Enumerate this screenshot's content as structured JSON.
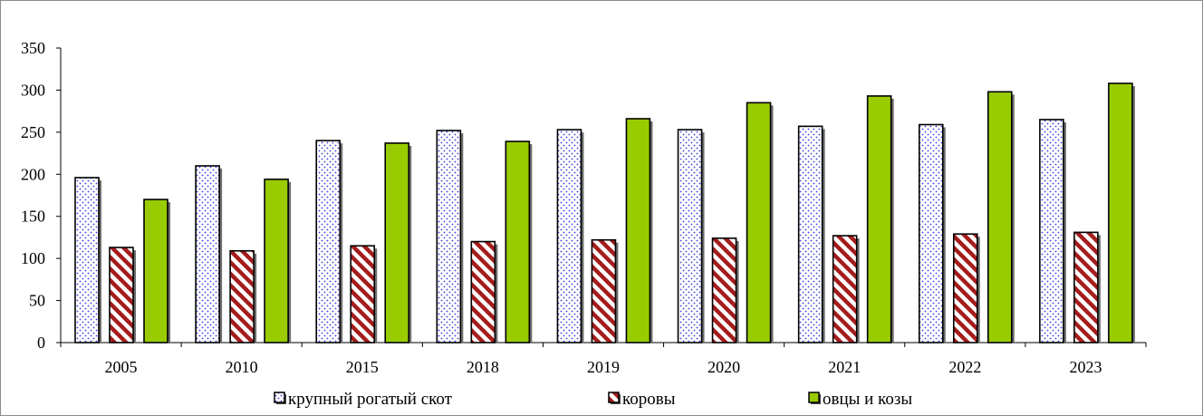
{
  "chart_data": {
    "type": "bar",
    "title": "",
    "xlabel": "",
    "ylabel": "",
    "ylim": [
      0,
      350
    ],
    "yticks": [
      "0",
      "50",
      "100",
      "150",
      "200",
      "250",
      "300",
      "350"
    ],
    "categories": [
      "2005",
      "2010",
      "2015",
      "2018",
      "2019",
      "2020",
      "2021",
      "2022",
      "2023"
    ],
    "series": [
      {
        "name": "крупный рогатый скот",
        "values": [
          196,
          210,
          240,
          252,
          253,
          253,
          257,
          259,
          265
        ],
        "fill": "#ffffff",
        "pattern_color": "#3a3adf",
        "pattern": "dots"
      },
      {
        "name": "коровы",
        "values": [
          113,
          109,
          115,
          120,
          122,
          124,
          127,
          129,
          131
        ],
        "fill": "#ffffff",
        "pattern_color": "#a51c1c",
        "pattern": "diagonal-stripes"
      },
      {
        "name": "овцы и козы",
        "values": [
          170,
          194,
          237,
          239,
          266,
          285,
          293,
          298,
          308
        ],
        "fill": "#99cc00",
        "pattern_color": "#99cc00",
        "pattern": "solid"
      }
    ],
    "grid": false,
    "legend_position": "bottom"
  }
}
